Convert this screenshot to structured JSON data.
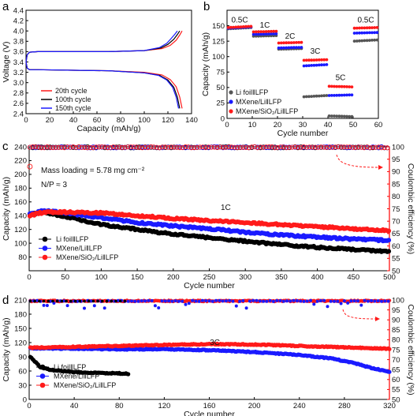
{
  "colors": {
    "black": "#000000",
    "blue": "#1a1aff",
    "red": "#ff1a1a",
    "darkred": "#8b0000",
    "gray": "#555555",
    "ce_axis": "#ff0000"
  },
  "chart_data": [
    {
      "panel": "a",
      "type": "line",
      "xlabel": "Capacity (mAh/g)",
      "ylabel": "Voltage (V)",
      "xlim": [
        0,
        140
      ],
      "ylim": [
        2.4,
        4.4
      ],
      "xticks": [
        "0",
        "20",
        "40",
        "60",
        "80",
        "100",
        "120",
        "140"
      ],
      "yticks": [
        "2.4",
        "2.6",
        "2.8",
        "3.0",
        "3.2",
        "3.4",
        "3.6",
        "3.8",
        "4.0",
        "4.2",
        "4.4"
      ],
      "legend": [
        "20th cycle",
        "100th cycle",
        "150th cycle"
      ],
      "series": [
        {
          "name": "20th cycle",
          "color": "#ff1a1a",
          "charge": [
            [
              0,
              3.4
            ],
            [
              1,
              3.54
            ],
            [
              3,
              3.59
            ],
            [
              10,
              3.6
            ],
            [
              40,
              3.6
            ],
            [
              70,
              3.6
            ],
            [
              100,
              3.62
            ],
            [
              115,
              3.66
            ],
            [
              122,
              3.72
            ],
            [
              127,
              3.82
            ],
            [
              130,
              3.92
            ],
            [
              132,
              4.0
            ]
          ],
          "discharge": [
            [
              0,
              3.4
            ],
            [
              1,
              3.28
            ],
            [
              3,
              3.25
            ],
            [
              10,
              3.25
            ],
            [
              40,
              3.24
            ],
            [
              70,
              3.23
            ],
            [
              100,
              3.2
            ],
            [
              115,
              3.15
            ],
            [
              122,
              3.06
            ],
            [
              127,
              2.92
            ],
            [
              130,
              2.72
            ],
            [
              132,
              2.5
            ]
          ]
        },
        {
          "name": "100th cycle",
          "color": "#000000",
          "charge": [
            [
              0,
              3.4
            ],
            [
              1,
              3.54
            ],
            [
              3,
              3.59
            ],
            [
              10,
              3.6
            ],
            [
              40,
              3.6
            ],
            [
              70,
              3.6
            ],
            [
              100,
              3.62
            ],
            [
              114,
              3.67
            ],
            [
              120,
              3.74
            ],
            [
              125,
              3.84
            ],
            [
              128,
              3.93
            ],
            [
              130,
              4.0
            ]
          ],
          "discharge": [
            [
              0,
              3.4
            ],
            [
              1,
              3.28
            ],
            [
              3,
              3.25
            ],
            [
              10,
              3.25
            ],
            [
              40,
              3.24
            ],
            [
              70,
              3.23
            ],
            [
              100,
              3.19
            ],
            [
              113,
              3.14
            ],
            [
              120,
              3.05
            ],
            [
              125,
              2.91
            ],
            [
              128,
              2.72
            ],
            [
              130,
              2.5
            ]
          ]
        },
        {
          "name": "150th cycle",
          "color": "#1a1aff",
          "charge": [
            [
              0,
              3.4
            ],
            [
              1,
              3.54
            ],
            [
              3,
              3.59
            ],
            [
              10,
              3.6
            ],
            [
              40,
              3.6
            ],
            [
              70,
              3.6
            ],
            [
              100,
              3.62
            ],
            [
              113,
              3.68
            ],
            [
              119,
              3.76
            ],
            [
              123,
              3.86
            ],
            [
              126,
              3.94
            ],
            [
              128,
              4.0
            ]
          ],
          "discharge": [
            [
              0,
              3.4
            ],
            [
              1,
              3.28
            ],
            [
              3,
              3.25
            ],
            [
              10,
              3.25
            ],
            [
              40,
              3.24
            ],
            [
              70,
              3.23
            ],
            [
              100,
              3.19
            ],
            [
              112,
              3.14
            ],
            [
              119,
              3.05
            ],
            [
              124,
              2.91
            ],
            [
              127,
              2.72
            ],
            [
              129,
              2.5
            ]
          ]
        }
      ]
    },
    {
      "panel": "b",
      "type": "scatter",
      "xlabel": "Cycle number",
      "ylabel": "Capacity (mAh/g)",
      "xlim": [
        0,
        60
      ],
      "ylim": [
        0,
        175
      ],
      "xticks": [
        "0",
        "10",
        "20",
        "30",
        "40",
        "50",
        "60"
      ],
      "yticks": [
        "0",
        "25",
        "50",
        "75",
        "100",
        "125",
        "150"
      ],
      "rate_labels": [
        {
          "text": "0.5C",
          "x": 5,
          "y": 155
        },
        {
          "text": "1C",
          "x": 15,
          "y": 147
        },
        {
          "text": "2C",
          "x": 25,
          "y": 129
        },
        {
          "text": "3C",
          "x": 35,
          "y": 105
        },
        {
          "text": "5C",
          "x": 45,
          "y": 62
        },
        {
          "text": "0.5C",
          "x": 55,
          "y": 155
        }
      ],
      "legend": [
        "Li foil‖LFP",
        "MXene/Li‖LFP",
        "MXene/SiO₂/Li‖LFP"
      ],
      "series": [
        {
          "name": "Li foil‖LFP",
          "color": "#555555",
          "steps": [
            [
              1,
              10,
              145,
              147
            ],
            [
              11,
              20,
              133,
              134
            ],
            [
              21,
              30,
              112,
              113
            ],
            [
              31,
              40,
              35,
              37
            ],
            [
              41,
              50,
              4,
              3
            ],
            [
              51,
              60,
              125,
              127
            ]
          ]
        },
        {
          "name": "MXene/Li‖LFP",
          "color": "#1a1aff",
          "steps": [
            [
              1,
              10,
              146,
              148
            ],
            [
              11,
              20,
              136,
              137
            ],
            [
              21,
              30,
              114,
              115
            ],
            [
              31,
              40,
              85,
              87
            ],
            [
              41,
              50,
              37,
              38
            ],
            [
              51,
              60,
              138,
              139
            ]
          ]
        },
        {
          "name": "MXene/SiO₂/Li‖LFP",
          "color": "#ff1a1a",
          "steps": [
            [
              1,
              10,
              147,
              149
            ],
            [
              11,
              20,
              140,
              141
            ],
            [
              21,
              30,
              122,
              123
            ],
            [
              31,
              40,
              94,
              95
            ],
            [
              41,
              50,
              52,
              51
            ],
            [
              51,
              60,
              146,
              147
            ]
          ]
        }
      ]
    },
    {
      "panel": "c",
      "type": "scatter",
      "xlabel": "Cycle number",
      "ylabel": "Capacity (mAh/g)",
      "y2label": "Coulombic efficiency (%)",
      "xlim": [
        0,
        500
      ],
      "ylim": [
        60,
        240
      ],
      "y2lim": [
        50,
        100
      ],
      "xticks": [
        "0",
        "50",
        "100",
        "150",
        "200",
        "250",
        "300",
        "350",
        "400",
        "450",
        "500"
      ],
      "yticks": [
        "80",
        "100",
        "120",
        "140",
        "160",
        "180",
        "200",
        "220",
        "240"
      ],
      "y2ticks": [
        "50",
        "55",
        "60",
        "65",
        "70",
        "75",
        "80",
        "85",
        "90",
        "95",
        "100"
      ],
      "annotations": [
        "Mass loading = 5.78 mg cm⁻²",
        "N/P ≈ 3",
        "1C"
      ],
      "legend": [
        "Li foil‖LFP",
        "MXene/Li‖LFP",
        "MXene/SiO₂/Li‖LFP"
      ],
      "ce_value": 99.8,
      "series": [
        {
          "name": "Li foil‖LFP",
          "color": "#000000",
          "points": [
            [
              1,
              142
            ],
            [
              20,
              145
            ],
            [
              50,
              139
            ],
            [
              100,
              127
            ],
            [
              150,
              120
            ],
            [
              200,
              113
            ],
            [
              250,
              108
            ],
            [
              300,
              103
            ],
            [
              350,
              98
            ],
            [
              400,
              94
            ],
            [
              450,
              91
            ],
            [
              500,
              88
            ]
          ]
        },
        {
          "name": "MXene/Li‖LFP",
          "color": "#1a1aff",
          "points": [
            [
              1,
              142
            ],
            [
              20,
              147
            ],
            [
              50,
              144
            ],
            [
              100,
              137
            ],
            [
              150,
              130
            ],
            [
              200,
              125
            ],
            [
              250,
              121
            ],
            [
              300,
              116
            ],
            [
              350,
              112
            ],
            [
              400,
              109
            ],
            [
              450,
              106
            ],
            [
              500,
              104
            ]
          ]
        },
        {
          "name": "MXene/SiO₂/Li‖LFP",
          "color": "#ff1a1a",
          "points": [
            [
              1,
              140
            ],
            [
              20,
              145
            ],
            [
              50,
              145
            ],
            [
              100,
              144
            ],
            [
              150,
              140
            ],
            [
              200,
              136
            ],
            [
              250,
              133
            ],
            [
              300,
              130
            ],
            [
              350,
              127
            ],
            [
              400,
              124
            ],
            [
              450,
              121
            ],
            [
              500,
              118
            ]
          ]
        }
      ]
    },
    {
      "panel": "d",
      "type": "scatter",
      "xlabel": "Cycle number",
      "ylabel": "Capacity (mAh/g)",
      "y2label": "Coulombic efficiency (%)",
      "xlim": [
        0,
        320
      ],
      "ylim": [
        0,
        210
      ],
      "y2lim": [
        50,
        100
      ],
      "xticks": [
        "0",
        "40",
        "80",
        "120",
        "160",
        "200",
        "240",
        "280",
        "320"
      ],
      "yticks": [
        "0",
        "30",
        "60",
        "90",
        "120",
        "150",
        "180",
        "210"
      ],
      "y2ticks": [
        "50",
        "55",
        "60",
        "65",
        "70",
        "75",
        "80",
        "85",
        "90",
        "95",
        "100"
      ],
      "annotations": [
        "3C"
      ],
      "legend": [
        "Li foil‖LFP",
        "MXene/Li‖LFP",
        "MXene/SiO₂/Li‖LFP"
      ],
      "ce_value": 99.5,
      "series": [
        {
          "name": "Li foil‖LFP",
          "color": "#000000",
          "points": [
            [
              1,
              90
            ],
            [
              5,
              80
            ],
            [
              10,
              68
            ],
            [
              20,
              62
            ],
            [
              40,
              58
            ],
            [
              60,
              56
            ],
            [
              80,
              55
            ],
            [
              88,
              54
            ]
          ]
        },
        {
          "name": "MXene/Li‖LFP",
          "color": "#1a1aff",
          "points": [
            [
              1,
              108
            ],
            [
              40,
              107
            ],
            [
              80,
              106
            ],
            [
              120,
              106
            ],
            [
              160,
              104
            ],
            [
              200,
              100
            ],
            [
              240,
              94
            ],
            [
              270,
              86
            ],
            [
              290,
              76
            ],
            [
              305,
              66
            ],
            [
              320,
              58
            ]
          ]
        },
        {
          "name": "MXene/SiO₂/Li‖LFP",
          "color": "#ff1a1a",
          "points": [
            [
              1,
              109
            ],
            [
              40,
              111
            ],
            [
              80,
              113
            ],
            [
              120,
              115
            ],
            [
              160,
              117
            ],
            [
              200,
              116
            ],
            [
              240,
              113
            ],
            [
              280,
              110
            ],
            [
              320,
              107
            ]
          ]
        }
      ]
    }
  ]
}
